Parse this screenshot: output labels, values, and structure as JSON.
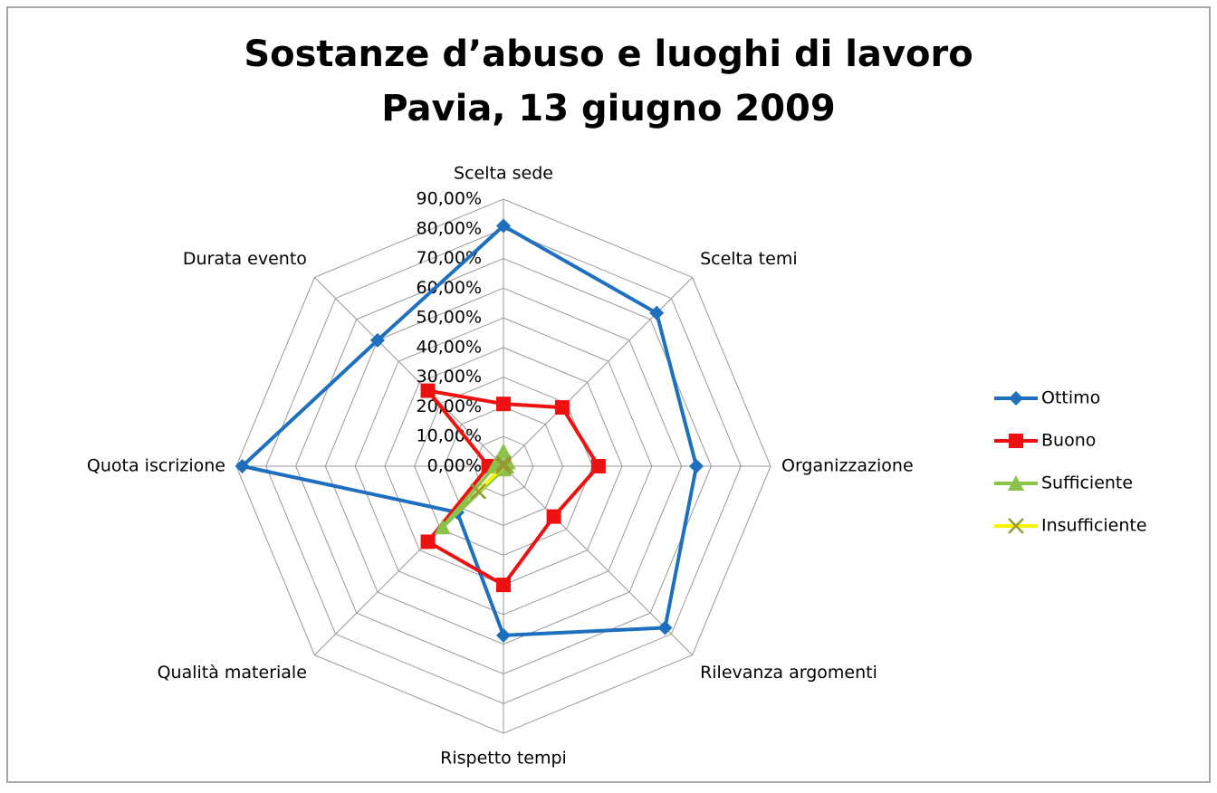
{
  "chart_data": {
    "type": "radar",
    "title": "Sostanze d’abuso e luoghi di lavoro",
    "subtitle": "Pavia, 13 giugno 2009",
    "categories": [
      "Scelta sede",
      "Scelta temi",
      "Organizzazione",
      "Rilevanza argomenti",
      "Rispetto tempi",
      "Qualità materiale",
      "Quota iscrizione",
      "Durata evento"
    ],
    "series": [
      {
        "name": "Ottimo",
        "color": "#1f6fbf",
        "marker": "diamond",
        "values": [
          81,
          73,
          65,
          77,
          57,
          22,
          88,
          60
        ]
      },
      {
        "name": "Buono",
        "color": "#ee1111",
        "marker": "square",
        "values": [
          21,
          28,
          32,
          24,
          40,
          36,
          5,
          36
        ]
      },
      {
        "name": "Sufficiente",
        "color": "#8bc34a",
        "marker": "triangle",
        "values": [
          5,
          2,
          1,
          0,
          1,
          29,
          3,
          2
        ]
      },
      {
        "name": "Insufficiente",
        "color": "#f5f500",
        "marker": "x",
        "values": [
          1,
          0,
          0,
          0,
          0,
          12,
          0,
          0
        ]
      }
    ],
    "ylim": [
      0,
      90
    ],
    "yticks": [
      {
        "value": 0,
        "label": "0,00%"
      },
      {
        "value": 10,
        "label": "10,00%"
      },
      {
        "value": 20,
        "label": "20,00%"
      },
      {
        "value": 30,
        "label": "30,00%"
      },
      {
        "value": 40,
        "label": "40,00%"
      },
      {
        "value": 50,
        "label": "50,00%"
      },
      {
        "value": 60,
        "label": "60,00%"
      },
      {
        "value": 70,
        "label": "70,00%"
      },
      {
        "value": 80,
        "label": "80,00%"
      },
      {
        "value": 90,
        "label": "90,00%"
      }
    ],
    "grid": true,
    "legend": "right"
  }
}
